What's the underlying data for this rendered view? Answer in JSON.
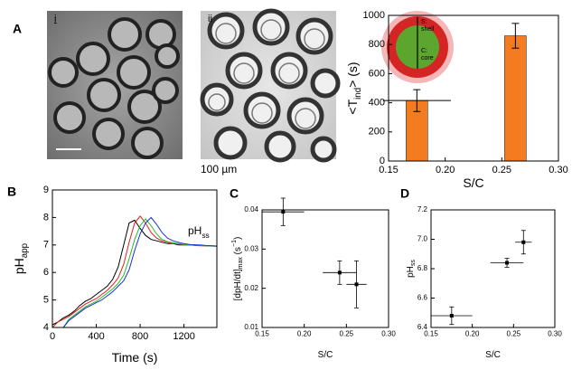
{
  "figure": {
    "images": [
      {
        "label": "i"
      },
      {
        "label": "ii"
      }
    ],
    "scale_bar": "100 µm"
  },
  "chart_data": [
    {
      "panel": "A",
      "type": "bar",
      "x": [
        0.175,
        0.262
      ],
      "values": [
        415,
        860
      ],
      "errors": [
        75,
        85
      ],
      "x_errors": [
        0.03,
        null
      ],
      "color": "#f47b20",
      "xlim": [
        0.15,
        0.3
      ],
      "xticks": [
        0.15,
        {
          "value": 0.2,
          "label": "0.20"
        },
        0.25,
        {
          "value": 0.3,
          "label": "0.30"
        }
      ],
      "ylim": [
        0,
        1000
      ],
      "yticks": [
        0,
        200,
        400,
        600,
        800,
        1000
      ],
      "xlabel": [
        {
          "text": "S/C"
        }
      ],
      "ylabel": [
        {
          "text": "<T"
        },
        {
          "text": "ind",
          "sub": true
        },
        {
          "text": "> (s)"
        }
      ],
      "inset": {
        "shell_label": [
          "S:",
          "shell"
        ],
        "core_label": [
          "C:",
          "core"
        ]
      }
    },
    {
      "panel": "B",
      "type": "line",
      "x": [
        0,
        50,
        100,
        150,
        200,
        250,
        300,
        350,
        400,
        450,
        500,
        550,
        600,
        650,
        700,
        750,
        800,
        850,
        900,
        950,
        1000,
        1050,
        1100,
        1150,
        1200,
        1250,
        1300,
        1350,
        1400,
        1450,
        1500
      ],
      "series": [
        {
          "color": "#000000",
          "values": [
            4.1,
            4.2,
            4.35,
            4.45,
            4.6,
            4.8,
            4.95,
            5.05,
            5.2,
            5.35,
            5.5,
            5.75,
            6.2,
            7.0,
            7.8,
            7.9,
            7.6,
            7.35,
            7.2,
            7.15,
            7.1,
            7.05,
            7.05,
            7.0,
            7.0,
            7.0,
            7.0,
            6.98,
            6.97,
            6.97,
            6.96
          ]
        },
        {
          "color": "#e0201b",
          "values": [
            4.0,
            4.2,
            4.3,
            4.4,
            4.55,
            4.7,
            4.85,
            4.95,
            5.05,
            5.2,
            5.35,
            5.55,
            5.8,
            6.3,
            7.1,
            7.8,
            8.05,
            7.8,
            7.45,
            7.25,
            7.15,
            7.1,
            7.05,
            7.05,
            7.0,
            7.0,
            6.98,
            6.97,
            6.97,
            6.96,
            6.95
          ]
        },
        {
          "color": "#1fbf2a",
          "values": [
            null,
            null,
            4.0,
            4.3,
            4.45,
            4.6,
            4.75,
            4.85,
            4.95,
            5.1,
            5.25,
            5.4,
            5.6,
            5.9,
            6.5,
            7.2,
            7.7,
            7.95,
            7.7,
            7.4,
            7.2,
            7.12,
            7.08,
            7.05,
            7.02,
            7.0,
            7.0,
            6.98,
            6.97,
            6.96,
            6.95
          ]
        },
        {
          "color": "#1f2fd6",
          "values": [
            null,
            null,
            4.0,
            4.25,
            4.4,
            4.55,
            4.7,
            4.8,
            4.9,
            5.0,
            5.15,
            5.3,
            5.5,
            5.7,
            6.1,
            6.8,
            7.4,
            7.8,
            8.0,
            7.75,
            7.45,
            7.25,
            7.15,
            7.1,
            7.05,
            7.02,
            7.0,
            7.0,
            6.98,
            6.97,
            6.96
          ]
        }
      ],
      "xlim": [
        0,
        1500
      ],
      "xticks": [
        0,
        400,
        800,
        1200
      ],
      "ylim": [
        4,
        9
      ],
      "yticks": [
        4,
        5,
        6,
        7,
        8,
        9
      ],
      "xlabel": [
        {
          "text": "Time (s)"
        }
      ],
      "ylabel": [
        {
          "text": "pH"
        },
        {
          "text": "app",
          "sub": true
        }
      ],
      "annotation": [
        {
          "text": "pH"
        },
        {
          "text": "ss",
          "sub": true
        }
      ]
    },
    {
      "panel": "C",
      "type": "scatter",
      "x": [
        0.175,
        0.242,
        0.262
      ],
      "x_errors": [
        0.025,
        0.02,
        0.012
      ],
      "values": [
        0.0395,
        0.024,
        0.021
      ],
      "errors": [
        0.0035,
        0.003,
        0.006
      ],
      "xlim": [
        0.15,
        0.3
      ],
      "xticks": [
        0.15,
        {
          "value": 0.2,
          "label": "0.20"
        },
        0.25,
        {
          "value": 0.3,
          "label": "0.30"
        }
      ],
      "ylim": [
        0.01,
        0.04
      ],
      "yticks": [
        0.01,
        0.02,
        0.03,
        0.04
      ],
      "xlabel": [
        {
          "text": "S/C"
        }
      ],
      "ylabel": [
        {
          "text": "[dpH/dt]"
        },
        {
          "text": "max",
          "sub": true
        },
        {
          "text": " (s"
        },
        {
          "text": "−1",
          "sup": true
        },
        {
          "text": ")"
        }
      ]
    },
    {
      "panel": "D",
      "type": "scatter",
      "x": [
        0.175,
        0.242,
        0.262
      ],
      "x_errors": [
        0.025,
        0.02,
        0.01
      ],
      "values": [
        6.48,
        6.84,
        6.98
      ],
      "errors": [
        0.06,
        0.03,
        0.08
      ],
      "xlim": [
        0.15,
        0.3
      ],
      "xticks": [
        0.15,
        {
          "value": 0.2,
          "label": "0.20"
        },
        0.25,
        {
          "value": 0.3,
          "label": "0.30"
        }
      ],
      "ylim": [
        6.4,
        7.2
      ],
      "yticks": [
        6.4,
        6.6,
        6.8,
        {
          "value": 7,
          "label": "7.0"
        },
        7.2
      ],
      "xlabel": [
        {
          "text": "S/C"
        }
      ],
      "ylabel": [
        {
          "text": "pH"
        },
        {
          "text": "ss",
          "sub": true
        }
      ]
    }
  ]
}
